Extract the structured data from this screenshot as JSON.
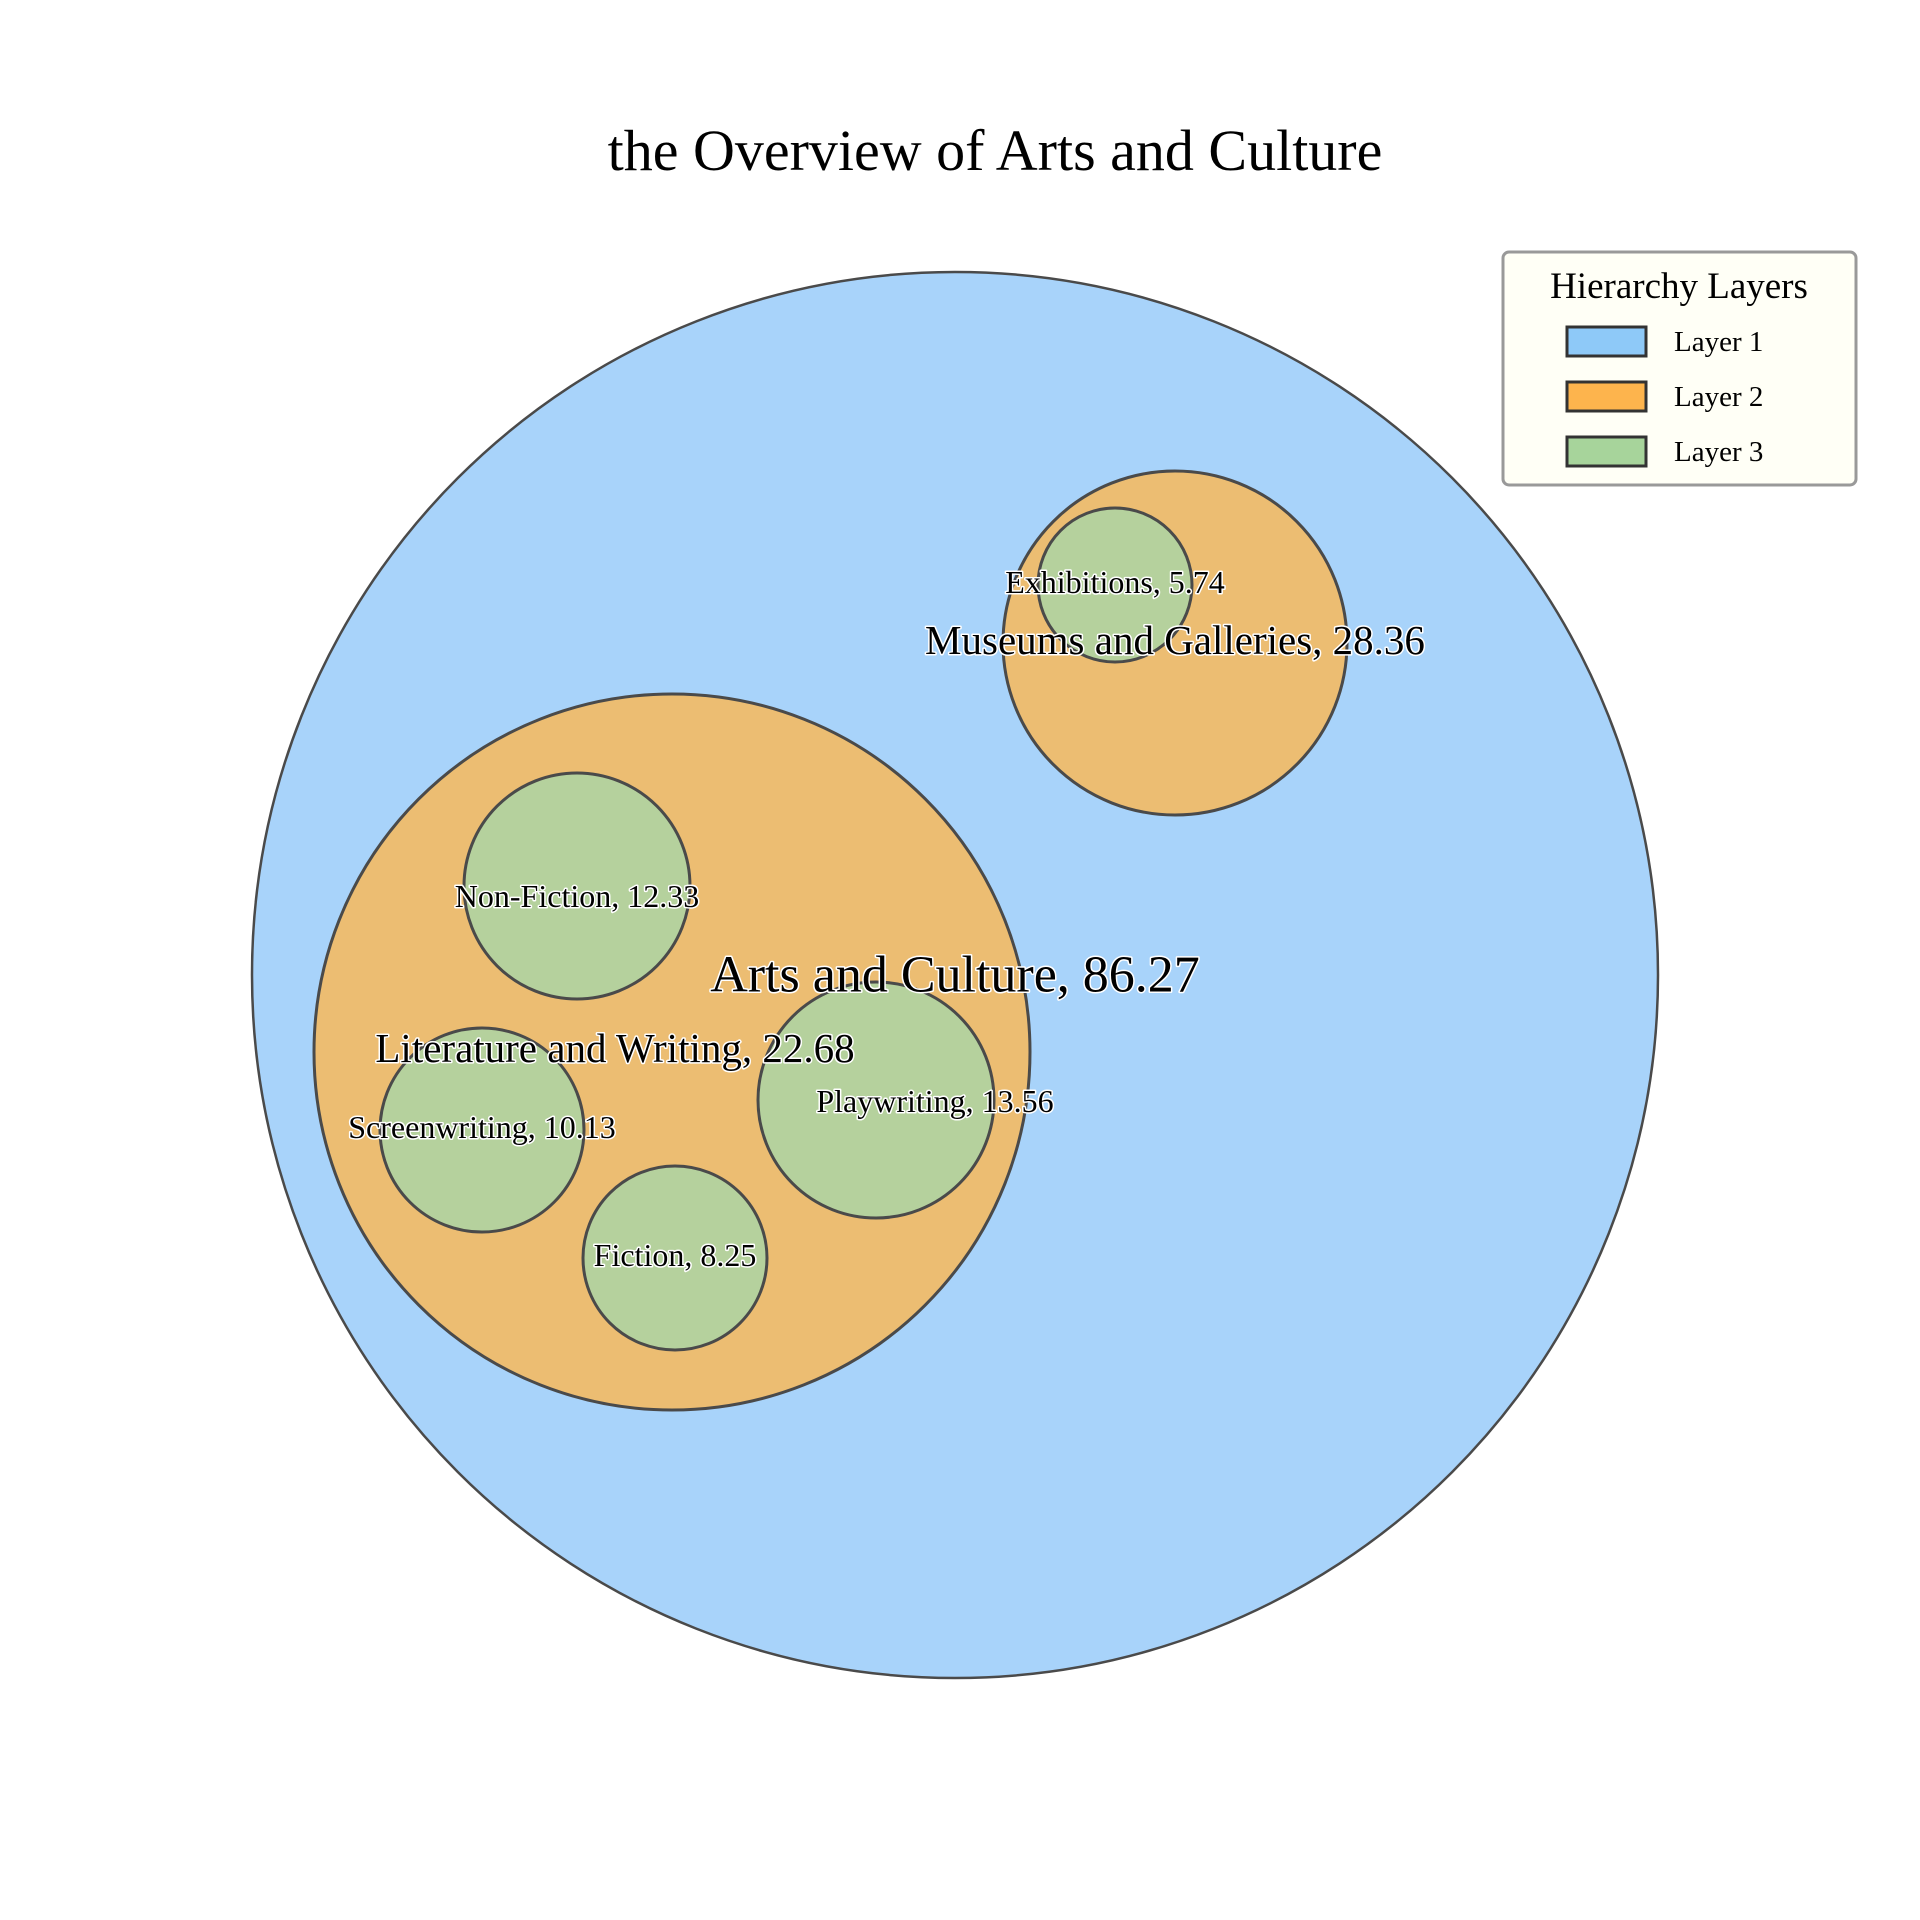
{
  "chart_data": {
    "type": "circle-packing",
    "title": "the Overview of Arts and Culture",
    "legend": {
      "title": "Hierarchy Layers",
      "placement": "top-right",
      "entries": [
        {
          "label": "Layer 1",
          "color": "#8ec9f8"
        },
        {
          "label": "Layer 2",
          "color": "#fdb44d"
        },
        {
          "label": "Layer 3",
          "color": "#a7d49b"
        }
      ]
    },
    "layer_colors": {
      "1": "#a8d3fa",
      "2": "#ecbd72",
      "3": "#b5d19d"
    },
    "nodes": [
      {
        "id": "root",
        "name": "Arts and Culture",
        "value": 86.27,
        "layer": 1,
        "label": "Arts and Culture, 86.27"
      },
      {
        "id": "museums",
        "name": "Museums and Galleries",
        "value": 28.36,
        "layer": 2,
        "parent": "root",
        "label": "Museums and Galleries, 28.36"
      },
      {
        "id": "literature",
        "name": "Literature and Writing",
        "value": 22.68,
        "layer": 2,
        "parent": "root",
        "label": "Literature and Writing, 22.68"
      },
      {
        "id": "exhibitions",
        "name": "Exhibitions",
        "value": 5.74,
        "layer": 3,
        "parent": "museums",
        "label": "Exhibitions, 5.74"
      },
      {
        "id": "nonfiction",
        "name": "Non-Fiction",
        "value": 12.33,
        "layer": 3,
        "parent": "literature",
        "label": "Non-Fiction, 12.33"
      },
      {
        "id": "playwriting",
        "name": "Playwriting",
        "value": 13.56,
        "layer": 3,
        "parent": "literature",
        "label": "Playwriting, 13.56"
      },
      {
        "id": "screenwriting",
        "name": "Screenwriting",
        "value": 10.13,
        "layer": 3,
        "parent": "literature",
        "label": "Screenwriting, 10.13"
      },
      {
        "id": "fiction",
        "name": "Fiction",
        "value": 8.25,
        "layer": 3,
        "parent": "literature",
        "label": "Fiction, 8.25"
      }
    ]
  }
}
